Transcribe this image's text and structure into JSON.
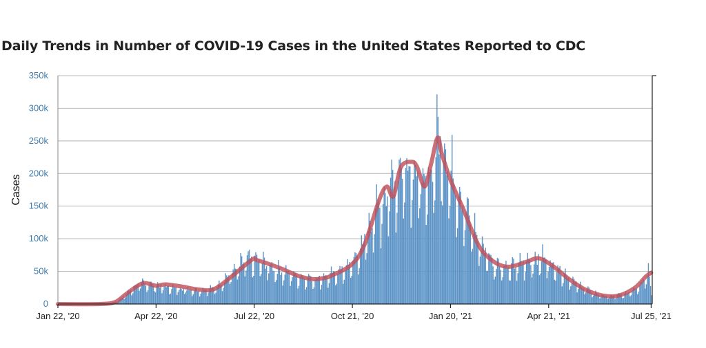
{
  "chart_data": {
    "type": "bar",
    "title": "Daily Trends in Number of COVID-19 Cases in the United States Reported to CDC",
    "xlabel": "",
    "ylabel": "Cases",
    "x_start": "2020-01-22",
    "x_end": "2021-07-25",
    "xlim": [
      "2020-01-22",
      "2021-07-26"
    ],
    "ylim": [
      0,
      350000
    ],
    "y_ticks": [
      0,
      50000,
      100000,
      150000,
      200000,
      250000,
      300000,
      350000
    ],
    "y_tick_labels": [
      "0",
      "50k",
      "100k",
      "150k",
      "200k",
      "250k",
      "300k",
      "350k"
    ],
    "x_ticks": [
      "2020-01-22",
      "2020-04-22",
      "2020-07-22",
      "2020-10-21",
      "2021-01-20",
      "2021-04-21",
      "2021-07-25"
    ],
    "x_tick_labels": [
      "Jan 22, '20",
      "Apr 22, '20",
      "Jul 22, '20",
      "Oct 21, '20",
      "Jan 20, '21",
      "Apr 21, '21",
      "Jul 25, '21"
    ],
    "grid": true,
    "legend": "none",
    "bar_color": "#5b93c6",
    "line_color": "#c0505a",
    "series": [
      {
        "type": "bar",
        "values_note": "daily cases, shown as bars",
        "anchors": [
          [
            "2020-01-22",
            0
          ],
          [
            "2020-03-01",
            0
          ],
          [
            "2020-03-10",
            500
          ],
          [
            "2020-03-20",
            8000
          ],
          [
            "2020-04-01",
            26000
          ],
          [
            "2020-04-10",
            32000
          ],
          [
            "2020-04-22",
            28000
          ],
          [
            "2020-05-10",
            24000
          ],
          [
            "2020-06-01",
            21000
          ],
          [
            "2020-06-15",
            24000
          ],
          [
            "2020-07-01",
            48000
          ],
          [
            "2020-07-15",
            68000
          ],
          [
            "2020-07-25",
            66000
          ],
          [
            "2020-08-15",
            50000
          ],
          [
            "2020-09-01",
            42000
          ],
          [
            "2020-09-15",
            38000
          ],
          [
            "2020-10-01",
            44000
          ],
          [
            "2020-10-15",
            55000
          ],
          [
            "2020-10-25",
            72000
          ],
          [
            "2020-11-10",
            135000
          ],
          [
            "2020-11-25",
            180000
          ],
          [
            "2020-12-05",
            205000
          ],
          [
            "2020-12-15",
            215000
          ],
          [
            "2020-12-25",
            175000
          ],
          [
            "2021-01-02",
            200000
          ],
          [
            "2021-01-08",
            255000
          ],
          [
            "2021-01-15",
            225000
          ],
          [
            "2021-02-01",
            150000
          ],
          [
            "2021-02-15",
            95000
          ],
          [
            "2021-03-01",
            62000
          ],
          [
            "2021-03-15",
            55000
          ],
          [
            "2021-04-01",
            65000
          ],
          [
            "2021-04-15",
            70000
          ],
          [
            "2021-05-01",
            52000
          ],
          [
            "2021-05-15",
            32000
          ],
          [
            "2021-06-01",
            17000
          ],
          [
            "2021-06-15",
            11000
          ],
          [
            "2021-07-01",
            15000
          ],
          [
            "2021-07-15",
            30000
          ],
          [
            "2021-07-22",
            52000
          ],
          [
            "2021-07-25",
            15000
          ]
        ]
      },
      {
        "type": "line",
        "values_note": "7-day moving average",
        "points": [
          [
            "2020-01-22",
            0
          ],
          [
            "2020-03-01",
            0
          ],
          [
            "2020-03-15",
            3000
          ],
          [
            "2020-03-25",
            15000
          ],
          [
            "2020-04-05",
            28000
          ],
          [
            "2020-04-12",
            32000
          ],
          [
            "2020-04-22",
            28000
          ],
          [
            "2020-05-01",
            30000
          ],
          [
            "2020-05-15",
            27000
          ],
          [
            "2020-06-01",
            22000
          ],
          [
            "2020-06-15",
            23000
          ],
          [
            "2020-07-01",
            42000
          ],
          [
            "2020-07-20",
            68000
          ],
          [
            "2020-07-25",
            67000
          ],
          [
            "2020-08-15",
            55000
          ],
          [
            "2020-09-01",
            43000
          ],
          [
            "2020-09-15",
            38000
          ],
          [
            "2020-09-25",
            40000
          ],
          [
            "2020-10-01",
            43000
          ],
          [
            "2020-10-20",
            60000
          ],
          [
            "2020-11-01",
            90000
          ],
          [
            "2020-11-15",
            160000
          ],
          [
            "2020-11-22",
            180000
          ],
          [
            "2020-11-28",
            165000
          ],
          [
            "2020-12-05",
            210000
          ],
          [
            "2020-12-15",
            218000
          ],
          [
            "2020-12-20",
            210000
          ],
          [
            "2020-12-27",
            180000
          ],
          [
            "2021-01-02",
            215000
          ],
          [
            "2021-01-08",
            255000
          ],
          [
            "2021-01-12",
            230000
          ],
          [
            "2021-01-20",
            190000
          ],
          [
            "2021-02-01",
            145000
          ],
          [
            "2021-02-15",
            90000
          ],
          [
            "2021-03-01",
            65000
          ],
          [
            "2021-03-15",
            57000
          ],
          [
            "2021-04-01",
            65000
          ],
          [
            "2021-04-12",
            70000
          ],
          [
            "2021-04-25",
            58000
          ],
          [
            "2021-05-10",
            38000
          ],
          [
            "2021-05-25",
            22000
          ],
          [
            "2021-06-10",
            13000
          ],
          [
            "2021-06-25",
            13000
          ],
          [
            "2021-07-10",
            25000
          ],
          [
            "2021-07-20",
            42000
          ],
          [
            "2021-07-25",
            48000
          ]
        ]
      }
    ]
  }
}
